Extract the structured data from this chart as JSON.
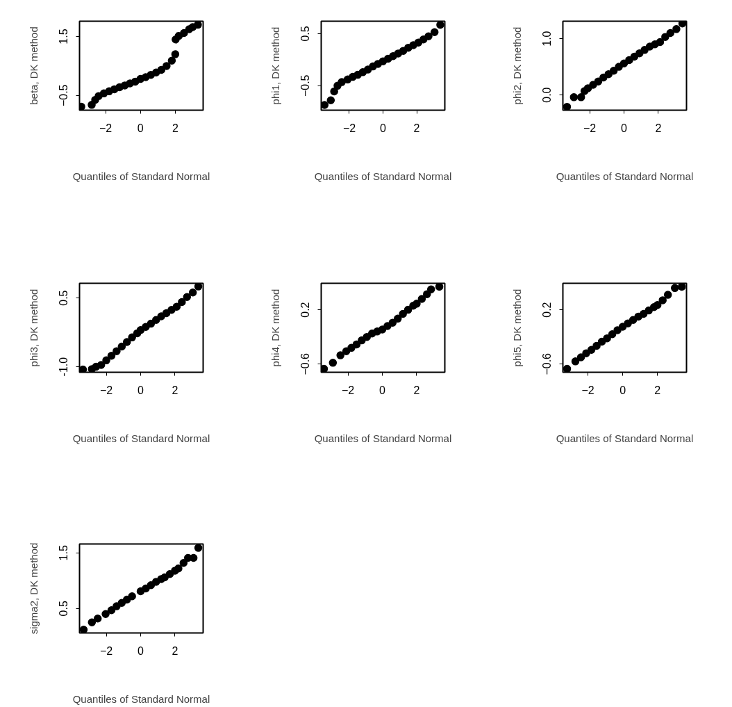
{
  "chart_data": [
    {
      "type": "scatter",
      "xlabel": "Quantiles of Standard Normal",
      "ylabel": "beta, DK method",
      "xlim": [
        -3.5,
        3.6
      ],
      "ylim": [
        -1.0,
        2.02
      ],
      "xticks": [
        -2,
        0,
        2
      ],
      "yticks": [
        -0.5,
        1.5
      ],
      "marker": "circle",
      "series": [
        {
          "color": "#000000",
          "x": [
            -3.4,
            -2.8,
            -2.6,
            -2.4,
            -2.1,
            -1.8,
            -1.5,
            -1.2,
            -0.9,
            -0.6,
            -0.3,
            0,
            0.3,
            0.6,
            0.9,
            1.2,
            1.5,
            1.8,
            2.0,
            2.02,
            2.2,
            2.5,
            2.8,
            3.0,
            3.3
          ],
          "values": [
            -0.88,
            -0.82,
            -0.65,
            -0.52,
            -0.43,
            -0.36,
            -0.29,
            -0.22,
            -0.16,
            -0.09,
            -0.03,
            0.06,
            0.12,
            0.2,
            0.28,
            0.37,
            0.5,
            0.68,
            0.9,
            1.4,
            1.52,
            1.62,
            1.75,
            1.82,
            1.9
          ]
        }
      ]
    },
    {
      "type": "scatter",
      "xlabel": "Quantiles of Standard Normal",
      "ylabel": "phi1, DK method",
      "xlim": [
        -3.67,
        3.67
      ],
      "ylim": [
        -0.97,
        0.74
      ],
      "xticks": [
        -2,
        0,
        2
      ],
      "yticks": [
        -0.5,
        0.5
      ],
      "marker": "circle",
      "series": [
        {
          "color": "#000000",
          "x": [
            -3.47,
            -3.1,
            -2.9,
            -2.7,
            -2.45,
            -2.1,
            -1.8,
            -1.5,
            -1.2,
            -0.9,
            -0.6,
            -0.3,
            0,
            0.3,
            0.6,
            0.9,
            1.2,
            1.5,
            1.8,
            2.1,
            2.4,
            2.7,
            3.06,
            3.4
          ],
          "values": [
            -0.87,
            -0.78,
            -0.61,
            -0.5,
            -0.43,
            -0.38,
            -0.33,
            -0.29,
            -0.24,
            -0.19,
            -0.13,
            -0.08,
            -0.03,
            0.02,
            0.07,
            0.12,
            0.17,
            0.23,
            0.28,
            0.33,
            0.39,
            0.45,
            0.53,
            0.67
          ]
        }
      ]
    },
    {
      "type": "scatter",
      "xlabel": "Quantiles of Standard Normal",
      "ylabel": "phi2, DK method",
      "xlim": [
        -3.56,
        3.64
      ],
      "ylim": [
        -0.27,
        1.31
      ],
      "xticks": [
        -2,
        0,
        2
      ],
      "yticks": [
        {
          "value": 0,
          "label": "0.0"
        },
        {
          "value": 1,
          "label": "1.0"
        }
      ],
      "marker": "circle",
      "series": [
        {
          "color": "#000000",
          "x": [
            -3.32,
            -2.92,
            -2.5,
            -2.3,
            -2.1,
            -1.8,
            -1.5,
            -1.2,
            -0.9,
            -0.6,
            -0.3,
            0,
            0.3,
            0.6,
            0.9,
            1.2,
            1.5,
            1.8,
            2.1,
            2.4,
            2.7,
            3.05,
            3.4
          ],
          "values": [
            -0.21,
            -0.04,
            -0.04,
            0.07,
            0.12,
            0.18,
            0.24,
            0.31,
            0.37,
            0.43,
            0.5,
            0.56,
            0.62,
            0.68,
            0.74,
            0.8,
            0.86,
            0.9,
            0.94,
            1.03,
            1.1,
            1.17,
            1.27
          ]
        }
      ]
    },
    {
      "type": "scatter",
      "xlabel": "Quantiles of Standard Normal",
      "ylabel": "phi3, DK method",
      "xlim": [
        -3.56,
        3.64
      ],
      "ylim": [
        -1.12,
        0.82
      ],
      "xticks": [
        -2,
        0,
        2
      ],
      "yticks": [
        {
          "value": -1,
          "label": "-1.0"
        },
        0.5
      ],
      "marker": "circle",
      "series": [
        {
          "color": "#000000",
          "x": [
            -3.36,
            -2.84,
            -2.6,
            -2.3,
            -2.0,
            -1.7,
            -1.4,
            -1.1,
            -0.8,
            -0.5,
            -0.2,
            0,
            0.3,
            0.6,
            0.9,
            1.2,
            1.5,
            1.8,
            2.1,
            2.4,
            2.7,
            3.04,
            3.36
          ],
          "values": [
            -1.06,
            -1.05,
            -1.0,
            -0.96,
            -0.86,
            -0.76,
            -0.66,
            -0.56,
            -0.46,
            -0.36,
            -0.27,
            -0.2,
            -0.13,
            -0.06,
            0.02,
            0.1,
            0.17,
            0.24,
            0.31,
            0.41,
            0.52,
            0.62,
            0.75
          ]
        }
      ]
    },
    {
      "type": "scatter",
      "xlabel": "Quantiles of Standard Normal",
      "ylabel": "phi4, DK method",
      "xlim": [
        -3.56,
        3.64
      ],
      "ylim": [
        -0.72,
        0.59
      ],
      "xticks": [
        -2,
        0,
        2
      ],
      "yticks": [
        -0.6,
        0.2
      ],
      "marker": "circle",
      "series": [
        {
          "color": "#000000",
          "x": [
            -3.4,
            -2.88,
            -2.44,
            -2.1,
            -1.8,
            -1.5,
            -1.2,
            -0.9,
            -0.6,
            -0.3,
            0,
            0.3,
            0.6,
            0.9,
            1.2,
            1.5,
            1.8,
            2.0,
            2.3,
            2.6,
            2.84,
            3.32
          ],
          "values": [
            -0.67,
            -0.58,
            -0.47,
            -0.41,
            -0.36,
            -0.31,
            -0.25,
            -0.2,
            -0.15,
            -0.12,
            -0.09,
            -0.04,
            0.01,
            0.07,
            0.14,
            0.2,
            0.26,
            0.29,
            0.36,
            0.43,
            0.5,
            0.54
          ]
        }
      ]
    },
    {
      "type": "scatter",
      "xlabel": "Quantiles of Standard Normal",
      "ylabel": "phi5, DK method",
      "xlim": [
        -3.44,
        3.67
      ],
      "ylim": [
        -0.72,
        0.59
      ],
      "xticks": [
        -2,
        0,
        2
      ],
      "yticks": [
        -0.6,
        0.2
      ],
      "marker": "circle",
      "series": [
        {
          "color": "#000000",
          "x": [
            -3.2,
            -2.72,
            -2.4,
            -2.1,
            -1.8,
            -1.5,
            -1.2,
            -0.9,
            -0.6,
            -0.3,
            0,
            0.3,
            0.6,
            0.9,
            1.2,
            1.5,
            1.8,
            2.0,
            2.3,
            2.6,
            3.0,
            3.4
          ],
          "values": [
            -0.67,
            -0.56,
            -0.5,
            -0.44,
            -0.39,
            -0.33,
            -0.27,
            -0.22,
            -0.16,
            -0.1,
            -0.05,
            0.0,
            0.05,
            0.1,
            0.14,
            0.19,
            0.24,
            0.27,
            0.34,
            0.42,
            0.52,
            0.54
          ]
        }
      ]
    },
    {
      "type": "scatter",
      "xlabel": "Quantiles of Standard Normal",
      "ylabel": "sigma2, DK method",
      "xlim": [
        -3.56,
        3.64
      ],
      "ylim": [
        0.06,
        1.66
      ],
      "xticks": [
        -2,
        0,
        2
      ],
      "yticks": [
        0.5,
        1.5
      ],
      "marker": "circle",
      "series": [
        {
          "color": "#000000",
          "x": [
            -3.32,
            -2.84,
            -2.5,
            -2.04,
            -1.7,
            -1.4,
            -1.1,
            -0.8,
            -0.5,
            0,
            0.3,
            0.6,
            0.9,
            1.2,
            1.4,
            1.7,
            2.0,
            2.2,
            2.5,
            2.76,
            3.08,
            3.36
          ],
          "values": [
            0.12,
            0.25,
            0.32,
            0.4,
            0.47,
            0.54,
            0.6,
            0.66,
            0.72,
            0.81,
            0.86,
            0.92,
            0.98,
            1.03,
            1.06,
            1.12,
            1.18,
            1.22,
            1.32,
            1.41,
            1.41,
            1.59
          ]
        }
      ]
    }
  ]
}
